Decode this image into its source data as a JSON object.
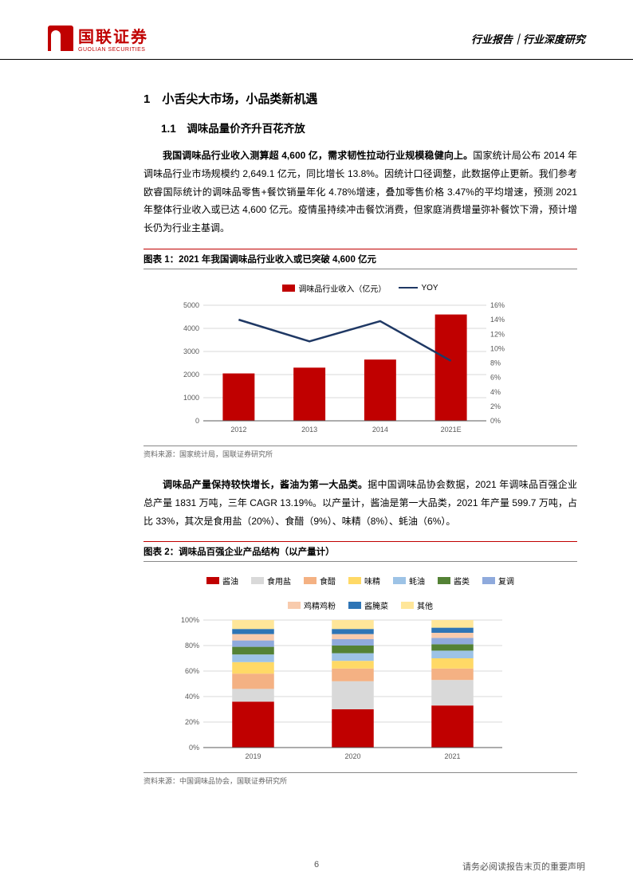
{
  "header": {
    "company_name": "国联证券",
    "company_sub": "GUOLIAN SECURITIES",
    "doc_type": "行业报告｜行业深度研究"
  },
  "section1": {
    "num": "1",
    "title": "小舌尖大市场，小品类新机遇",
    "sub_num": "1.1",
    "sub_title": "调味品量价齐升百花齐放"
  },
  "para1_bold": "我国调味品行业收入测算超 4,600 亿，需求韧性拉动行业规模稳健向上。",
  "para1_rest": "国家统计局公布 2014 年调味品行业市场规模约 2,649.1 亿元，同比增长 13.8%。因统计口径调整，此数据停止更新。我们参考欧睿国际统计的调味品零售+餐饮销量年化 4.78%增速，叠加零售价格 3.47%的平均增速，预测 2021 年整体行业收入或已达 4,600 亿元。疫情虽持续冲击餐饮消费，但家庭消费增量弥补餐饮下滑，预计增长仍为行业主基调。",
  "chart1": {
    "title": "图表 1：2021 年我国调味品行业收入或已突破 4,600 亿元",
    "type": "bar_line_combo",
    "legend_bar": "调味品行业收入（亿元）",
    "legend_line": "YOY",
    "categories": [
      "2012",
      "2013",
      "2014",
      "2021E"
    ],
    "bar_values": [
      2050,
      2300,
      2650,
      4600
    ],
    "line_values": [
      14.0,
      11.0,
      13.8,
      8.3
    ],
    "y1_max": 5000,
    "y1_step": 1000,
    "y2_max": 16,
    "y2_step": 2,
    "bar_color": "#c00000",
    "line_color": "#1f3864",
    "grid_color": "#d9d9d9",
    "text_color": "#595959",
    "source": "资料来源：国家统计局，国联证券研究所"
  },
  "para2_bold": "调味品产量保持较快增长，酱油为第一大品类。",
  "para2_rest": "据中国调味品协会数据，2021 年调味品百强企业总产量 1831 万吨，三年 CAGR 13.19%。以产量计，酱油是第一大品类，2021 年产量 599.7 万吨，占比 33%，其次是食用盐（20%）、食醋（9%）、味精（8%）、蚝油（6%）。",
  "chart2": {
    "title": "图表 2：调味品百强企业产品结构（以产量计）",
    "type": "stacked_bar_100",
    "categories": [
      "2019",
      "2020",
      "2021"
    ],
    "series": [
      {
        "name": "酱油",
        "color": "#c00000",
        "values": [
          36,
          30,
          33
        ]
      },
      {
        "name": "食用盐",
        "color": "#d9d9d9",
        "values": [
          10,
          22,
          20
        ]
      },
      {
        "name": "食醋",
        "color": "#f4b183",
        "values": [
          12,
          10,
          9
        ]
      },
      {
        "name": "味精",
        "color": "#ffd966",
        "values": [
          9,
          6,
          8
        ]
      },
      {
        "name": "蚝油",
        "color": "#9dc3e6",
        "values": [
          6,
          6,
          6
        ]
      },
      {
        "name": "酱类",
        "color": "#548235",
        "values": [
          6,
          6,
          5
        ]
      },
      {
        "name": "复调",
        "color": "#8faadc",
        "values": [
          5,
          5,
          5
        ]
      },
      {
        "name": "鸡精鸡粉",
        "color": "#f8cbad",
        "values": [
          5,
          4,
          4
        ]
      },
      {
        "name": "酱腌菜",
        "color": "#2e75b6",
        "values": [
          4,
          4,
          4
        ]
      },
      {
        "name": "其他",
        "color": "#ffe699",
        "values": [
          7,
          7,
          6
        ]
      }
    ],
    "y_max": 100,
    "y_step": 20,
    "grid_color": "#d9d9d9",
    "text_color": "#595959",
    "source": "资料来源：中国调味品协会，国联证券研究所"
  },
  "footer": {
    "page": "6",
    "disclaimer": "请务必阅读报告末页的重要声明"
  }
}
